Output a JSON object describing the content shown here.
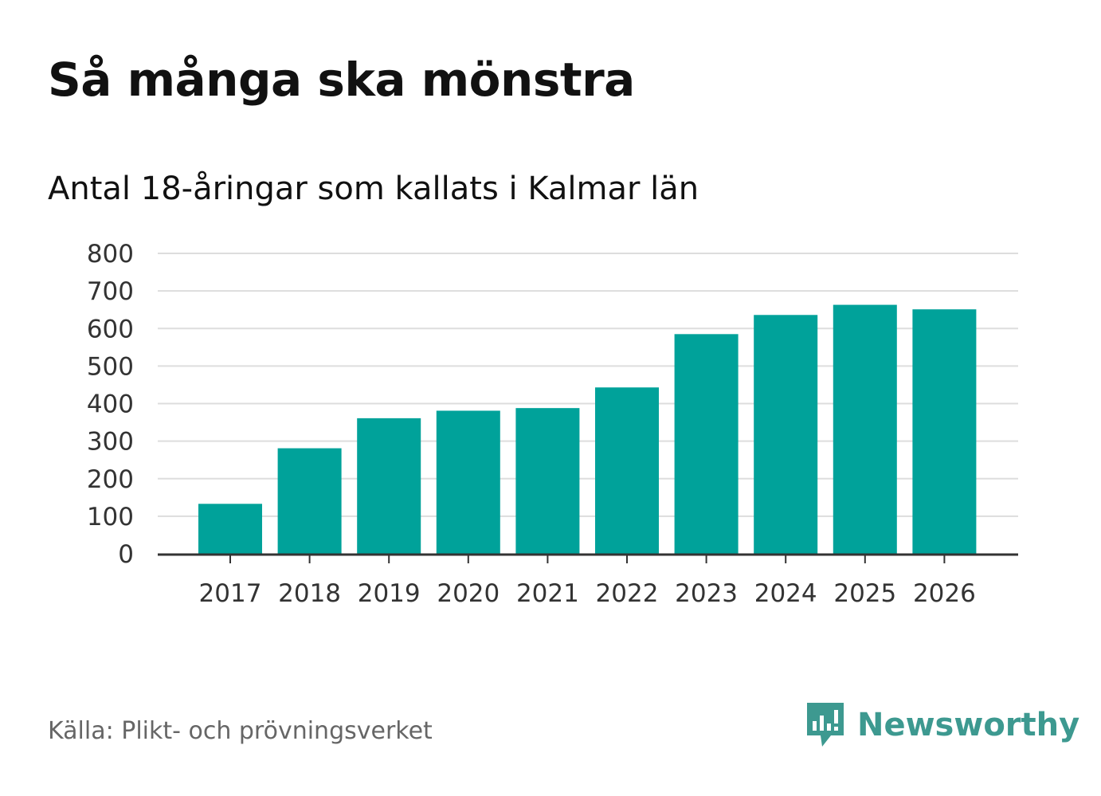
{
  "header": {
    "title": "Så många ska mönstra",
    "subtitle": "Antal 18-åringar som kallats i Kalmar län"
  },
  "footer": {
    "source": "Källa: Plikt- och prövningsverket",
    "brand": "Newsworthy",
    "brand_icon": "newsworthy-logo-icon"
  },
  "colors": {
    "bar": "#00a29a",
    "grid": "#dddddd",
    "axis": "#333333",
    "tick_text": "#333333",
    "brand": "#3d9990"
  },
  "chart_data": {
    "type": "bar",
    "title": "Så många ska mönstra",
    "subtitle": "Antal 18-åringar som kallats i Kalmar län",
    "xlabel": "",
    "ylabel": "",
    "categories": [
      "2017",
      "2018",
      "2019",
      "2020",
      "2021",
      "2022",
      "2023",
      "2024",
      "2025",
      "2026"
    ],
    "values": [
      133,
      281,
      361,
      381,
      388,
      443,
      585,
      636,
      663,
      651
    ],
    "ylim": [
      0,
      800
    ],
    "yticks": [
      0,
      100,
      200,
      300,
      400,
      500,
      600,
      700,
      800
    ],
    "grid": true,
    "legend": "none"
  }
}
